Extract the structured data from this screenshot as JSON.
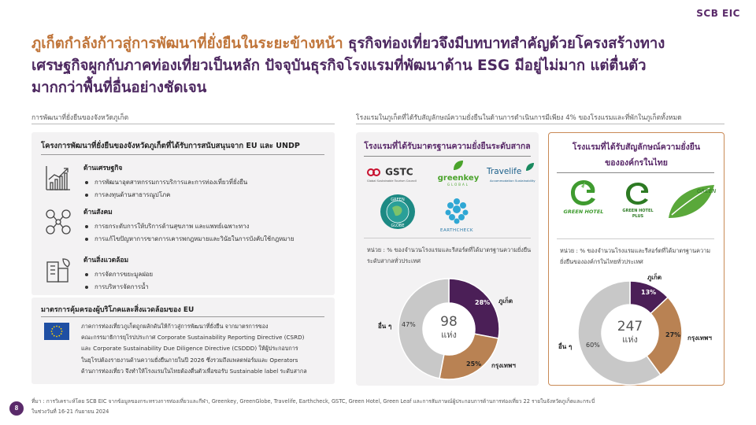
{
  "brand": {
    "logo": "SCB EIC"
  },
  "headline": {
    "highlight": "ภูเก็ตกำลังก้าวสู่การพัฒนาที่ยั่งยืนในระยะข้างหน้า",
    "rest_line1": " ธุรกิจท่องเที่ยวจึงมีบทบาทสำคัญด้วยโครงสร้างทาง",
    "line2": "เศรษฐกิจผูกกับภาคท่องเที่ยวเป็นหลัก ปัจจุบันธุรกิจโรงแรมที่พัฒนาด้าน ESG มีอยู่ไม่มาก แต่ตื่นตัว",
    "line3": "มากกว่าพื้นที่อื่นอย่างชัดเจน"
  },
  "left": {
    "section_label": "การพัฒนาที่ยั่งยืนของจังหวัดภูเก็ต",
    "box_title": "โครงการพัฒนาที่ยั่งยืนของจังหวัดภูเก็ตที่ได้รับการสนับสนุนจาก EU และ UNDP",
    "categories": [
      {
        "title": "ด้านเศรษฐกิจ",
        "icon": "growth-chart-icon",
        "items": [
          "การพัฒนาอุตสาหกรรมการบริการและการท่องเที่ยวที่ยั่งยืน",
          "การลงทุนด้านสาธารณูปโภค"
        ]
      },
      {
        "title": "ด้านสังคม",
        "icon": "people-network-icon",
        "items": [
          "การยกระดับการให้บริการด้านสุขภาพ และแพทย์เฉพาะทาง",
          "การแก้ไขปัญหาการขาดการเคารพกฎหมายและวินัยในการบังคับใช้กฎหมาย"
        ]
      },
      {
        "title": "ด้านสิ่งแวดล้อม",
        "icon": "eco-building-icon",
        "items": [
          "การจัดการขยะมูลฝอย",
          "การบริหารจัดการน้ำ"
        ]
      }
    ],
    "eu_title": "มาตรการคุ้มครองผู้บริโภคและสิ่งแวดล้อมของ EU",
    "eu_lines": [
      "ภาคการท่องเที่ยวภูเก็ตถูกผลักดันให้ก้าวสู่การพัฒนาที่ยั่งยืน จากมาตรการของ",
      "คณะกรรมาธิการยุโรปประกาศ Corporate Sustainability Reporting Directive (CSRD)",
      "และ Corporate Sustainability Due Diligence Directive (CSDDD) ให้ผู้ประกอบการ",
      "ในยุโรปต้องรายงานด้านความยั่งยืนภายในปี 2026 ซึ่งรวมถึงแพลตฟอร์มและ Operators",
      "ด้านการท่องเที่ยว จึงทำให้โรงแรมในไทยต้องตื่นตัวเพื่อขอรับ Sustainable label ระดับสากล"
    ]
  },
  "right": {
    "section_label": "โรงแรมในภูเก็ตที่ได้รับสัญลักษณ์ความยั่งยืนในด้านการดำเนินการมีเพียง 4% ของโรงแรมและที่พักในภูเก็ตทั้งหมด",
    "panel_a": {
      "title": "โรงแรมที่ได้รับมาตรฐานความยั่งยืนระดับสากล",
      "logos": [
        "GSTC",
        "greenkey",
        "Travelife",
        "GREEN GLOBE",
        "EARTHCHECK"
      ],
      "logo_sub": {
        "gstc": "Global Sustainable Tourism Council",
        "greenkey": "GLOBAL",
        "travelife": "Accommodation Sustainability"
      },
      "unit_line1": "หน่วย : % ของจำนวนโรงแรมและรีสอร์ตที่ได้มาตรฐานความยั่งยืน",
      "unit_line2": "ระดับสากลทั่วประเทศ",
      "center_value": "98",
      "center_unit": "แห่ง"
    },
    "panel_b": {
      "title_line1": "โรงแรมที่ได้รับสัญลักษณ์ความยั่งยืน",
      "title_line2": "ขององค์กรในไทย",
      "logos": [
        "GREEN HOTEL",
        "GREEN HOTEL PLUS",
        "GREEN LEAF"
      ],
      "unit_line1": "หน่วย : % ของจำนวนโรงแรมและรีสอร์ตที่ได้มาตรฐานความ",
      "unit_line2": "ยั่งยืนขององค์กรในไทยทั่วประเทศ",
      "center_value": "247",
      "center_unit": "แห่ง"
    }
  },
  "chart_data": [
    {
      "type": "pie",
      "title": "โรงแรมที่ได้รับมาตรฐานความยั่งยืนระดับสากล",
      "categories": [
        "ภูเก็ต",
        "กรุงเทพฯ",
        "อื่น ๆ"
      ],
      "values": [
        28,
        25,
        47
      ],
      "value_labels": [
        "28%",
        "25%",
        "47%"
      ],
      "colors": [
        "#4b1f57",
        "#b98253",
        "#c8c8c8"
      ]
    },
    {
      "type": "pie",
      "title": "โรงแรมที่ได้รับสัญลักษณ์ความยั่งยืนขององค์กรในไทย",
      "categories": [
        "ภูเก็ต",
        "กรุงเทพฯ",
        "อื่น ๆ"
      ],
      "values": [
        13,
        27,
        60
      ],
      "value_labels": [
        "13%",
        "27%",
        "60%"
      ],
      "colors": [
        "#4b1f57",
        "#b98253",
        "#c8c8c8"
      ]
    }
  ],
  "footer": {
    "page_number": "8",
    "source_line1": "ที่มา : การวิเคราะห์โดย SCB EIC จากข้อมูลของกระทรวงการท่องเที่ยวและกีฬา, Greenkey, GreenGlobe, Travelife, Earthcheck, GSTC, Green Hotel, Green Leaf และการสัมภาษณ์ผู้ประกอบการด้านการท่องเที่ยว 22 รายในจังหวัดภูเก็ตและกระบี่",
    "source_line2": "ในช่วงวันที่ 16-21 กันยายน 2024"
  }
}
